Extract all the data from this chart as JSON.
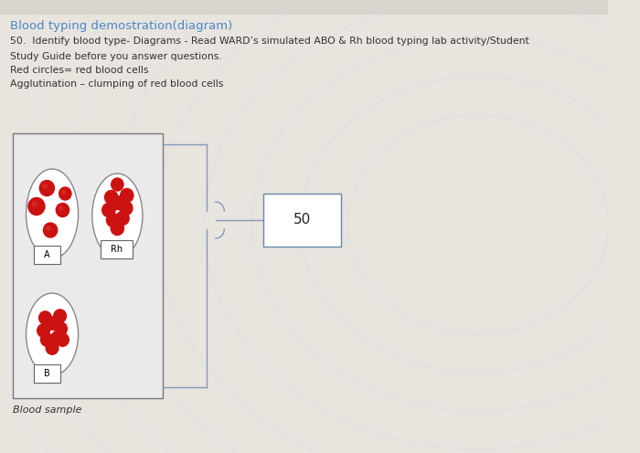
{
  "title": "Blood typing demostration(diagram)",
  "line1": "50.  Identify blood type- Diagrams - Read WARD’s simulated ABO & Rh blood typing lab activity/Student",
  "line2": "Study Guide before you answer questions.",
  "line3": "Red circles= red blood cells",
  "line4": "Agglutination – clumping of red blood cells",
  "label_blood_sample": "Blood sample",
  "label_A": "A",
  "label_B": "B",
  "label_Rh": "Rh",
  "label_50": "50",
  "title_color": "#4a86c8",
  "text_color": "#333333",
  "bg_color_top": "#f0ede8",
  "bg_color_main": "#e8e4de",
  "panel_bg": "#ebebee",
  "red_cell_color": "#cc1111",
  "ellipse_edge": "#888888",
  "bracket_color": "#8899bb",
  "box50_edge": "#6688aa"
}
